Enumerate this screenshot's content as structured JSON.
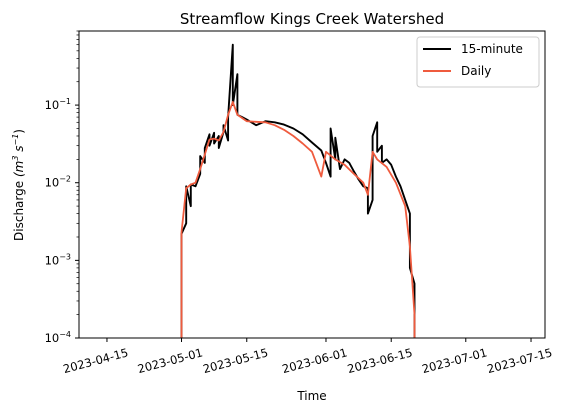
{
  "chart_data": {
    "type": "line",
    "title": "Streamflow Kings Creek Watershed",
    "xlabel": "Time",
    "ylabel": "Discharge",
    "ylabel_unit": "(m",
    "ylabel_exp1": "3",
    "ylabel_mid": " s",
    "ylabel_exp2": "−1",
    "ylabel_close": ")",
    "yscale": "log",
    "ylim": [
      0.0001,
      0.9
    ],
    "xlim": [
      "2023-04-09",
      "2023-07-18"
    ],
    "x_ticks": [
      "2023-04-15",
      "2023-05-01",
      "2023-05-15",
      "2023-06-01",
      "2023-06-15",
      "2023-07-01",
      "2023-07-15"
    ],
    "y_ticks": [
      {
        "value": 0.0001,
        "base": "10",
        "exp": "−4"
      },
      {
        "value": 0.001,
        "base": "10",
        "exp": "−3"
      },
      {
        "value": 0.01,
        "base": "10",
        "exp": "−2"
      },
      {
        "value": 0.1,
        "base": "10",
        "exp": "−1"
      }
    ],
    "legend": {
      "position": "top-right"
    },
    "grid": false,
    "series": [
      {
        "name": "15-minute",
        "color": "#000000",
        "points": [
          [
            "2023-05-01",
            5e-05
          ],
          [
            "2023-05-01",
            0.0006
          ],
          [
            "2023-05-01",
            0.0022
          ],
          [
            "2023-05-02",
            0.003
          ],
          [
            "2023-05-02",
            0.009
          ],
          [
            "2023-05-03",
            0.005
          ],
          [
            "2023-05-03",
            0.0095
          ],
          [
            "2023-05-04",
            0.009
          ],
          [
            "2023-05-05",
            0.013
          ],
          [
            "2023-05-05",
            0.022
          ],
          [
            "2023-05-06",
            0.018
          ],
          [
            "2023-05-06",
            0.028
          ],
          [
            "2023-05-07",
            0.042
          ],
          [
            "2023-05-07",
            0.03
          ],
          [
            "2023-05-08",
            0.044
          ],
          [
            "2023-05-08",
            0.032
          ],
          [
            "2023-05-09",
            0.04
          ],
          [
            "2023-05-09",
            0.028
          ],
          [
            "2023-05-10",
            0.045
          ],
          [
            "2023-05-10",
            0.055
          ],
          [
            "2023-05-11",
            0.035
          ],
          [
            "2023-05-11",
            0.07
          ],
          [
            "2023-05-12",
            0.6
          ],
          [
            "2023-05-12",
            0.1
          ],
          [
            "2023-05-13",
            0.25
          ],
          [
            "2023-05-13",
            0.075
          ],
          [
            "2023-05-14",
            0.07
          ],
          [
            "2023-05-15",
            0.065
          ],
          [
            "2023-05-17",
            0.055
          ],
          [
            "2023-05-19",
            0.062
          ],
          [
            "2023-05-21",
            0.06
          ],
          [
            "2023-05-23",
            0.056
          ],
          [
            "2023-05-25",
            0.05
          ],
          [
            "2023-05-27",
            0.042
          ],
          [
            "2023-05-29",
            0.033
          ],
          [
            "2023-05-31",
            0.026
          ],
          [
            "2023-06-01",
            0.018
          ],
          [
            "2023-06-02",
            0.012
          ],
          [
            "2023-06-02",
            0.05
          ],
          [
            "2023-06-03",
            0.02
          ],
          [
            "2023-06-03",
            0.038
          ],
          [
            "2023-06-04",
            0.015
          ],
          [
            "2023-06-05",
            0.02
          ],
          [
            "2023-06-06",
            0.018
          ],
          [
            "2023-06-07",
            0.014
          ],
          [
            "2023-06-08",
            0.011
          ],
          [
            "2023-06-09",
            0.009
          ],
          [
            "2023-06-10",
            0.0085
          ],
          [
            "2023-06-10",
            0.004
          ],
          [
            "2023-06-11",
            0.006
          ],
          [
            "2023-06-11",
            0.04
          ],
          [
            "2023-06-12",
            0.06
          ],
          [
            "2023-06-12",
            0.025
          ],
          [
            "2023-06-13",
            0.03
          ],
          [
            "2023-06-13",
            0.018
          ],
          [
            "2023-06-14",
            0.02
          ],
          [
            "2023-06-15",
            0.017
          ],
          [
            "2023-06-16",
            0.012
          ],
          [
            "2023-06-17",
            0.009
          ],
          [
            "2023-06-18",
            0.006
          ],
          [
            "2023-06-19",
            0.004
          ],
          [
            "2023-06-19",
            0.0008
          ],
          [
            "2023-06-20",
            0.0005
          ],
          [
            "2023-06-20",
            0.0003
          ],
          [
            "2023-06-20",
            5e-05
          ]
        ]
      },
      {
        "name": "Daily",
        "color": "#ef5b3e",
        "points": [
          [
            "2023-05-01",
            5e-05
          ],
          [
            "2023-05-01",
            0.0023
          ],
          [
            "2023-05-02",
            0.0085
          ],
          [
            "2023-05-03",
            0.0095
          ],
          [
            "2023-05-04",
            0.01
          ],
          [
            "2023-05-05",
            0.015
          ],
          [
            "2023-05-07",
            0.036
          ],
          [
            "2023-05-08",
            0.037
          ],
          [
            "2023-05-09",
            0.035
          ],
          [
            "2023-05-10",
            0.045
          ],
          [
            "2023-05-11",
            0.075
          ],
          [
            "2023-05-12",
            0.11
          ],
          [
            "2023-05-13",
            0.075
          ],
          [
            "2023-05-15",
            0.062
          ],
          [
            "2023-05-17",
            0.061
          ],
          [
            "2023-05-19",
            0.06
          ],
          [
            "2023-05-21",
            0.055
          ],
          [
            "2023-05-23",
            0.048
          ],
          [
            "2023-05-25",
            0.04
          ],
          [
            "2023-05-27",
            0.032
          ],
          [
            "2023-05-29",
            0.025
          ],
          [
            "2023-05-31",
            0.012
          ],
          [
            "2023-06-01",
            0.025
          ],
          [
            "2023-06-03",
            0.02
          ],
          [
            "2023-06-05",
            0.017
          ],
          [
            "2023-06-07",
            0.013
          ],
          [
            "2023-06-09",
            0.01
          ],
          [
            "2023-06-10",
            0.007
          ],
          [
            "2023-06-11",
            0.025
          ],
          [
            "2023-06-12",
            0.02
          ],
          [
            "2023-06-14",
            0.016
          ],
          [
            "2023-06-16",
            0.01
          ],
          [
            "2023-06-18",
            0.005
          ],
          [
            "2023-06-19",
            0.0015
          ],
          [
            "2023-06-20",
            0.0002
          ],
          [
            "2023-06-20",
            5e-05
          ]
        ]
      }
    ]
  }
}
